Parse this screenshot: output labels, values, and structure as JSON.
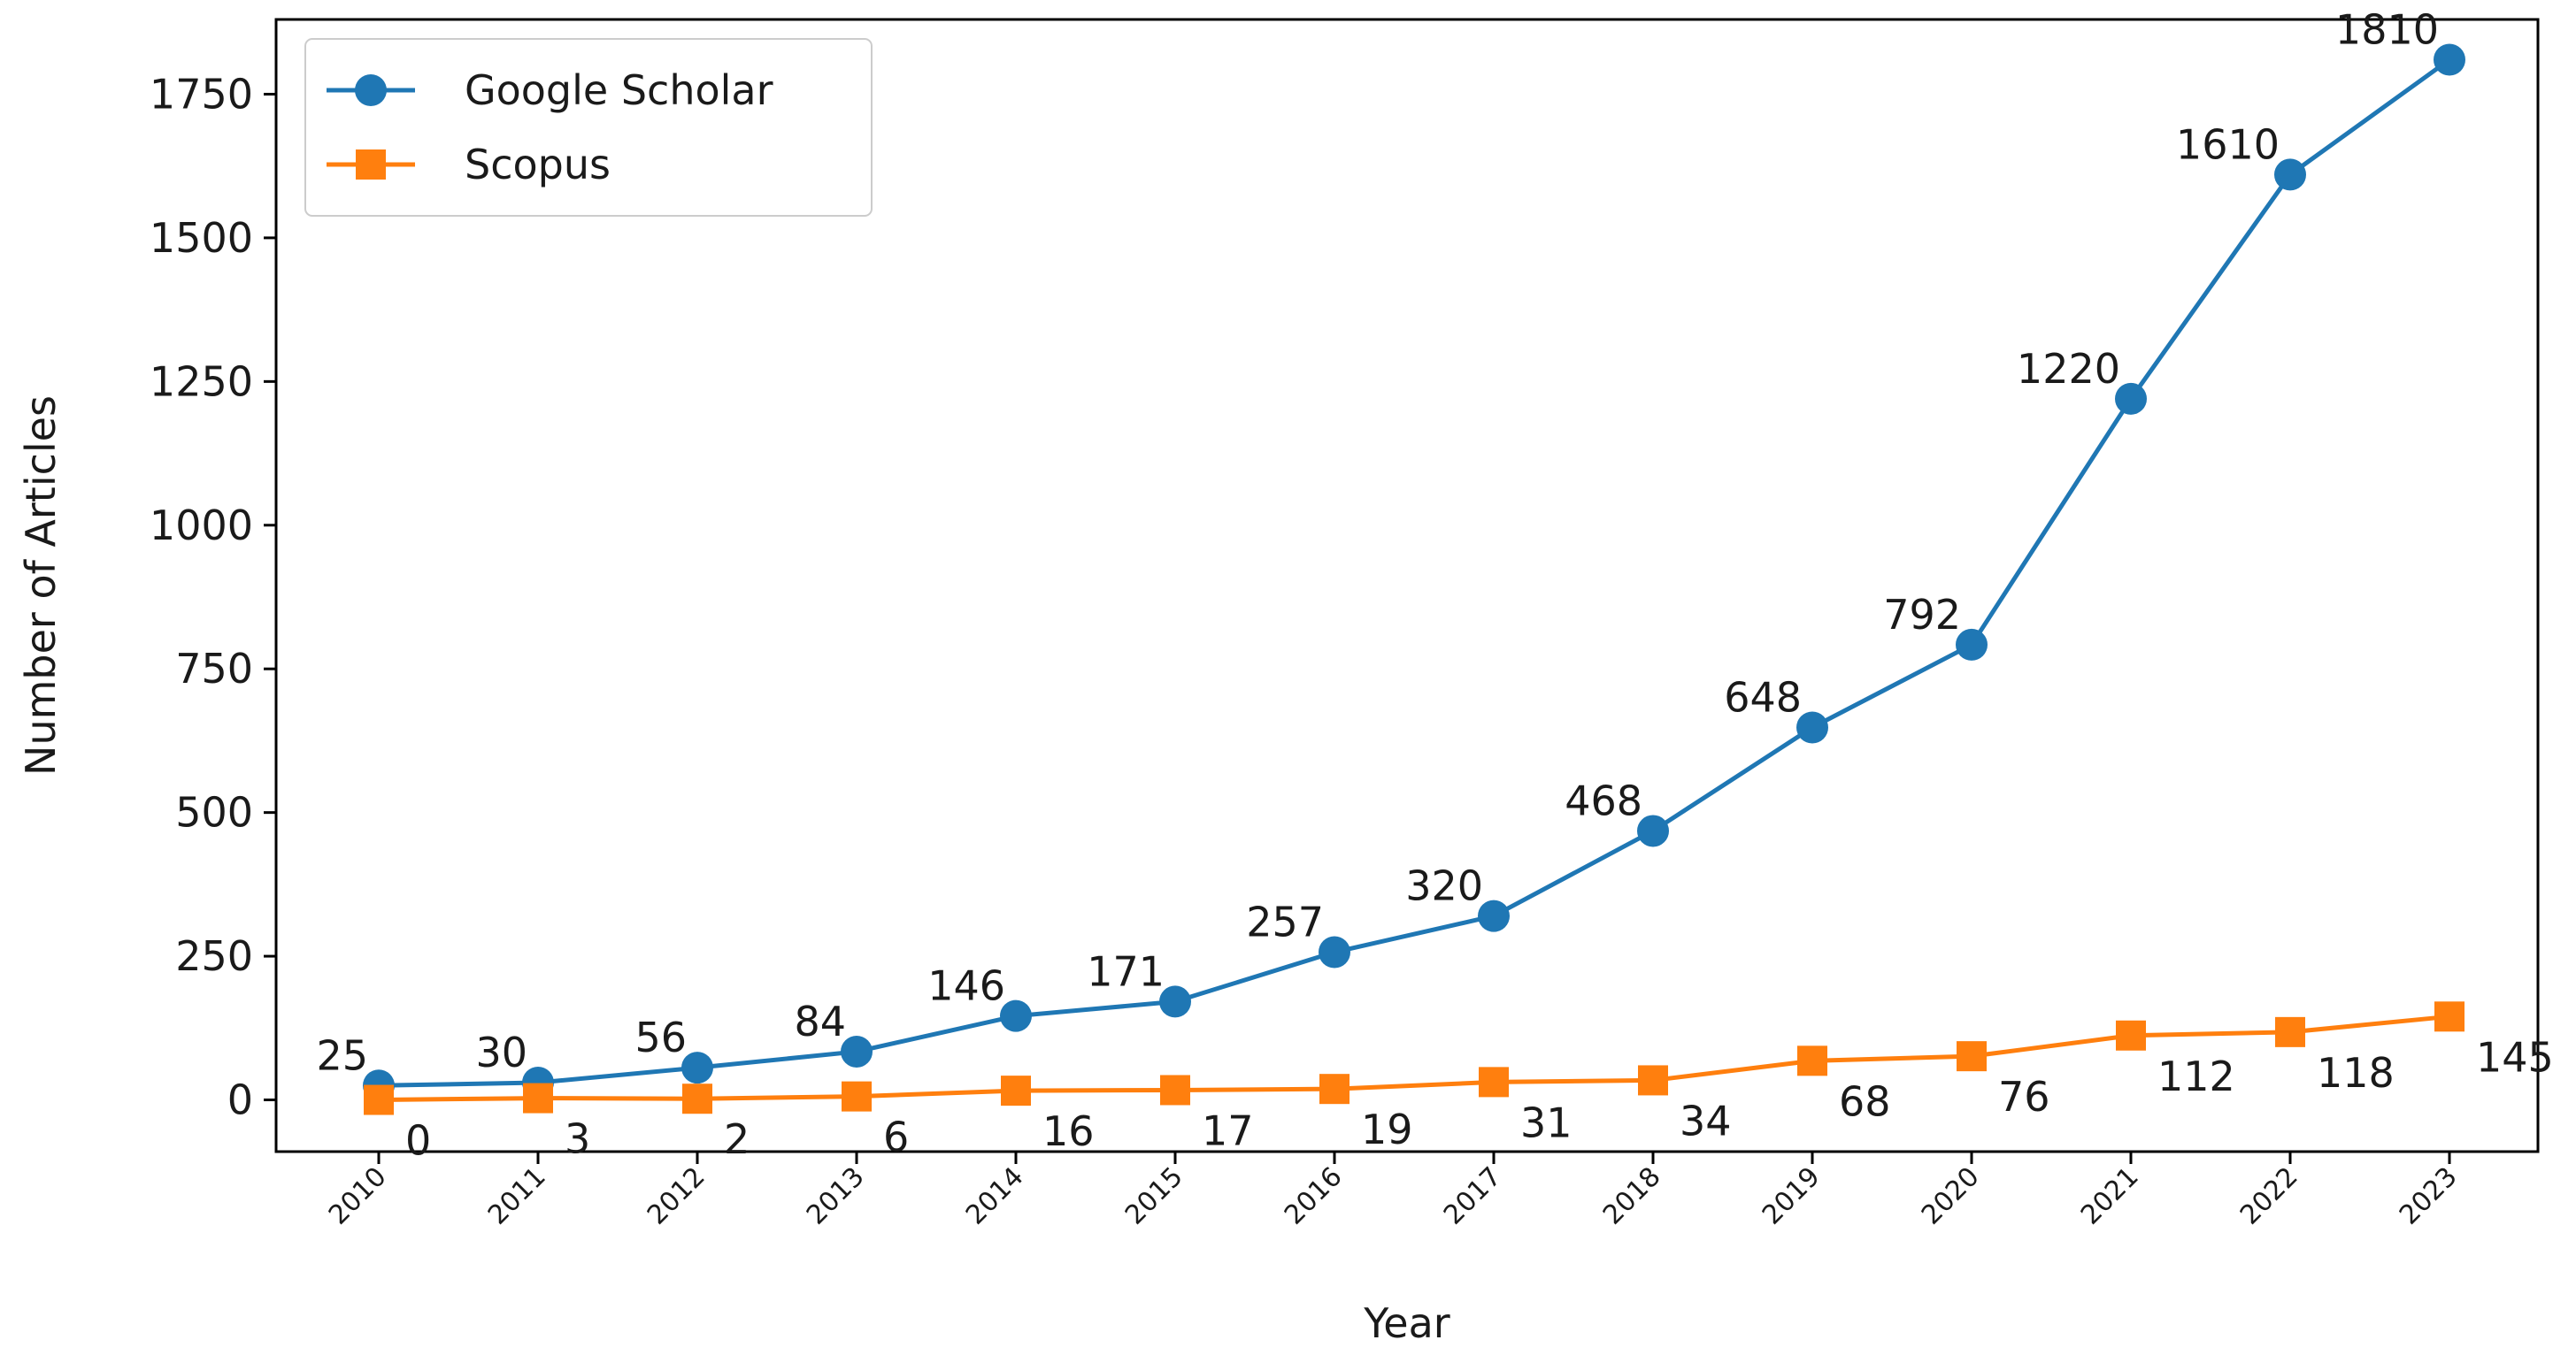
{
  "chart_data": {
    "type": "line",
    "title": "",
    "xlabel": "Year",
    "ylabel": "Number of Articles",
    "categories": [
      "2010",
      "2011",
      "2012",
      "2013",
      "2014",
      "2015",
      "2016",
      "2017",
      "2018",
      "2019",
      "2020",
      "2021",
      "2022",
      "2023"
    ],
    "ylim": [
      -90,
      1880
    ],
    "yticks": [
      0,
      250,
      500,
      750,
      1000,
      1250,
      1500,
      1750
    ],
    "grid": false,
    "legend_position": "top-left",
    "series": [
      {
        "name": "Google Scholar",
        "color": "#1f77b4",
        "marker": "circle",
        "label_position": "above-left",
        "values": [
          25,
          30,
          56,
          84,
          146,
          171,
          257,
          320,
          468,
          648,
          792,
          1220,
          1610,
          1810
        ]
      },
      {
        "name": "Scopus",
        "color": "#ff7f0e",
        "marker": "square",
        "label_position": "below-right",
        "values": [
          0,
          3,
          2,
          6,
          16,
          17,
          19,
          31,
          34,
          68,
          76,
          112,
          118,
          145
        ]
      }
    ]
  }
}
